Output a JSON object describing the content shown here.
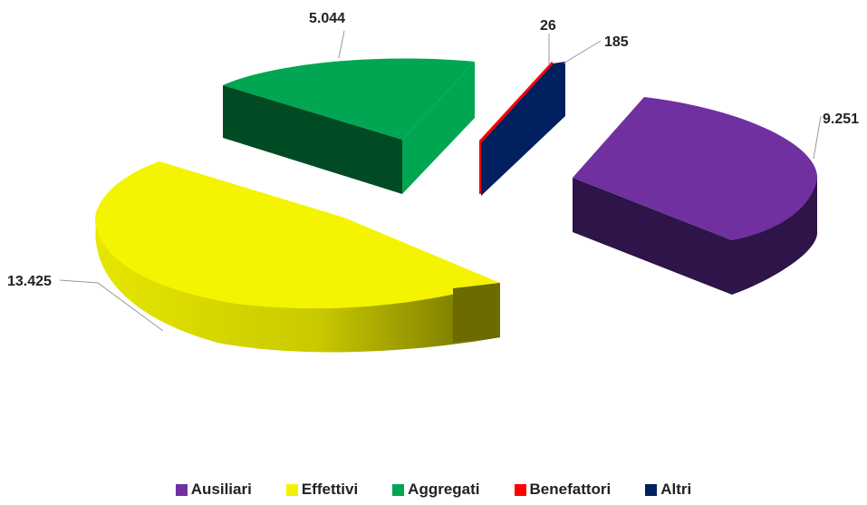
{
  "chart_data": {
    "type": "pie",
    "style": "3d-exploded",
    "title": "",
    "slices": [
      {
        "label": "Ausiliari",
        "value": 9251,
        "display": "9.251",
        "color": "#7030A0",
        "side": "#2E1448"
      },
      {
        "label": "Effettivi",
        "value": 13425,
        "display": "13.425",
        "color": "#F2F200",
        "side": "#BDBD00"
      },
      {
        "label": "Aggregati",
        "value": 5044,
        "display": "5.044",
        "color": "#00A651",
        "side": "#004B23"
      },
      {
        "label": "Benefattori",
        "value": 26,
        "display": "26",
        "color": "#FF0000",
        "side": "#8B0000"
      },
      {
        "label": "Altri",
        "value": 185,
        "display": "185",
        "color": "#002060",
        "side": "#001035"
      }
    ],
    "legend_position": "bottom"
  }
}
